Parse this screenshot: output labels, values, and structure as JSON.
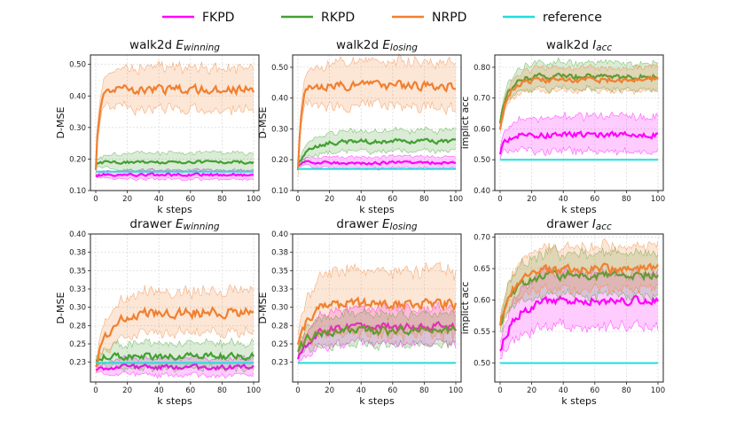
{
  "legend": [
    {
      "name": "FKPD",
      "color": "#ff00ff"
    },
    {
      "name": "RKPD",
      "color": "#44a033"
    },
    {
      "name": "NRPD",
      "color": "#f08030"
    },
    {
      "name": "reference",
      "color": "#22dddd"
    }
  ],
  "chart_data": [
    {
      "type": "line",
      "title": "walk2d E",
      "title_sub": "winning",
      "xlabel": "k steps",
      "ylabel": "D-MSE",
      "xlim": [
        0,
        100
      ],
      "ylim": [
        0.1,
        0.53
      ],
      "xticks": [
        0,
        20,
        40,
        60,
        80,
        100
      ],
      "yticks": [
        0.1,
        0.2,
        0.3,
        0.4,
        0.5
      ],
      "ytick_labels": [
        "0.10",
        "0.20",
        "0.30",
        "0.40",
        "0.50"
      ],
      "series": [
        {
          "name": "FKPD",
          "start": 0.15,
          "end": 0.15,
          "rate": 5,
          "noise": 0.004,
          "band": 0.015
        },
        {
          "name": "RKPD",
          "start": 0.18,
          "end": 0.19,
          "rate": 5,
          "noise": 0.004,
          "band": 0.03
        },
        {
          "name": "NRPD",
          "start": 0.17,
          "end": 0.42,
          "rate": 6,
          "noise": 0.012,
          "band": 0.07
        }
      ],
      "reference": 0.16
    },
    {
      "type": "line",
      "title": "walk2d E",
      "title_sub": "losing",
      "xlabel": "k steps",
      "ylabel": "D-MSE",
      "xlim": [
        0,
        100
      ],
      "ylim": [
        0.1,
        0.54
      ],
      "xticks": [
        0,
        20,
        40,
        60,
        80,
        100
      ],
      "yticks": [
        0.1,
        0.2,
        0.3,
        0.4,
        0.5
      ],
      "ytick_labels": [
        "0.10",
        "0.20",
        "0.30",
        "0.40",
        "0.50"
      ],
      "series": [
        {
          "name": "FKPD",
          "start": 0.18,
          "end": 0.19,
          "rate": 5,
          "noise": 0.004,
          "band": 0.02
        },
        {
          "name": "RKPD",
          "start": 0.19,
          "end": 0.26,
          "rate": 25,
          "noise": 0.006,
          "band": 0.035
        },
        {
          "name": "NRPD",
          "start": 0.17,
          "end": 0.44,
          "rate": 6,
          "noise": 0.012,
          "band": 0.075
        }
      ],
      "reference": 0.17
    },
    {
      "type": "line",
      "title": "walk2d I",
      "title_sub": "acc",
      "xlabel": "k steps",
      "ylabel": "implict acc",
      "xlim": [
        0,
        100
      ],
      "ylim": [
        0.4,
        0.84
      ],
      "xticks": [
        0,
        20,
        40,
        60,
        80,
        100
      ],
      "yticks": [
        0.4,
        0.5,
        0.6,
        0.7,
        0.8
      ],
      "ytick_labels": [
        "0.40",
        "0.50",
        "0.60",
        "0.70",
        "0.80"
      ],
      "series": [
        {
          "name": "FKPD",
          "start": 0.52,
          "end": 0.58,
          "rate": 10,
          "noise": 0.008,
          "band": 0.06
        },
        {
          "name": "RKPD",
          "start": 0.62,
          "end": 0.77,
          "rate": 15,
          "noise": 0.008,
          "band": 0.045
        },
        {
          "name": "NRPD",
          "start": 0.6,
          "end": 0.76,
          "rate": 15,
          "noise": 0.008,
          "band": 0.04
        }
      ],
      "reference": 0.5
    },
    {
      "type": "line",
      "title": "drawer E",
      "title_sub": "winning",
      "xlabel": "k steps",
      "ylabel": "D-MSE",
      "xlim": [
        0,
        100
      ],
      "ylim": [
        0.198,
        0.4
      ],
      "xticks": [
        0,
        20,
        40,
        60,
        80,
        100
      ],
      "yticks": [
        0.225,
        0.25,
        0.275,
        0.3,
        0.325,
        0.35,
        0.375,
        0.4
      ],
      "ytick_labels": [
        "0.23",
        "0.25",
        "0.28",
        "0.30",
        "0.33",
        "0.35",
        "0.38",
        "0.40"
      ],
      "series": [
        {
          "name": "FKPD",
          "start": 0.215,
          "end": 0.218,
          "rate": 5,
          "noise": 0.003,
          "band": 0.012
        },
        {
          "name": "RKPD",
          "start": 0.228,
          "end": 0.233,
          "rate": 5,
          "noise": 0.004,
          "band": 0.018
        },
        {
          "name": "NRPD",
          "start": 0.22,
          "end": 0.293,
          "rate": 25,
          "noise": 0.006,
          "band": 0.03
        }
      ],
      "reference": 0.224
    },
    {
      "type": "line",
      "title": "drawer E",
      "title_sub": "losing",
      "xlabel": "k steps",
      "ylabel": "D-MSE",
      "xlim": [
        0,
        100
      ],
      "ylim": [
        0.198,
        0.4
      ],
      "xticks": [
        0,
        20,
        40,
        60,
        80,
        100
      ],
      "yticks": [
        0.225,
        0.25,
        0.275,
        0.3,
        0.325,
        0.35,
        0.375,
        0.4
      ],
      "ytick_labels": [
        "0.23",
        "0.25",
        "0.28",
        "0.30",
        "0.33",
        "0.35",
        "0.38",
        "0.40"
      ],
      "series": [
        {
          "name": "FKPD",
          "start": 0.23,
          "end": 0.273,
          "rate": 25,
          "noise": 0.005,
          "band": 0.025
        },
        {
          "name": "RKPD",
          "start": 0.24,
          "end": 0.268,
          "rate": 20,
          "noise": 0.005,
          "band": 0.022
        },
        {
          "name": "NRPD",
          "start": 0.25,
          "end": 0.305,
          "rate": 20,
          "noise": 0.006,
          "band": 0.045
        }
      ],
      "reference": 0.224
    },
    {
      "type": "line",
      "title": "drawer I",
      "title_sub": "acc",
      "xlabel": "k steps",
      "ylabel": "implict acc",
      "xlim": [
        0,
        100
      ],
      "ylim": [
        0.47,
        0.705
      ],
      "xticks": [
        0,
        20,
        40,
        60,
        80,
        100
      ],
      "yticks": [
        0.5,
        0.55,
        0.6,
        0.65,
        0.7
      ],
      "ytick_labels": [
        "0.50",
        "0.55",
        "0.60",
        "0.65",
        "0.70"
      ],
      "series": [
        {
          "name": "FKPD",
          "start": 0.52,
          "end": 0.6,
          "rate": 30,
          "noise": 0.006,
          "band": 0.045
        },
        {
          "name": "RKPD",
          "start": 0.56,
          "end": 0.64,
          "rate": 25,
          "noise": 0.006,
          "band": 0.035
        },
        {
          "name": "NRPD",
          "start": 0.56,
          "end": 0.65,
          "rate": 25,
          "noise": 0.006,
          "band": 0.035
        }
      ],
      "reference": 0.5
    }
  ]
}
